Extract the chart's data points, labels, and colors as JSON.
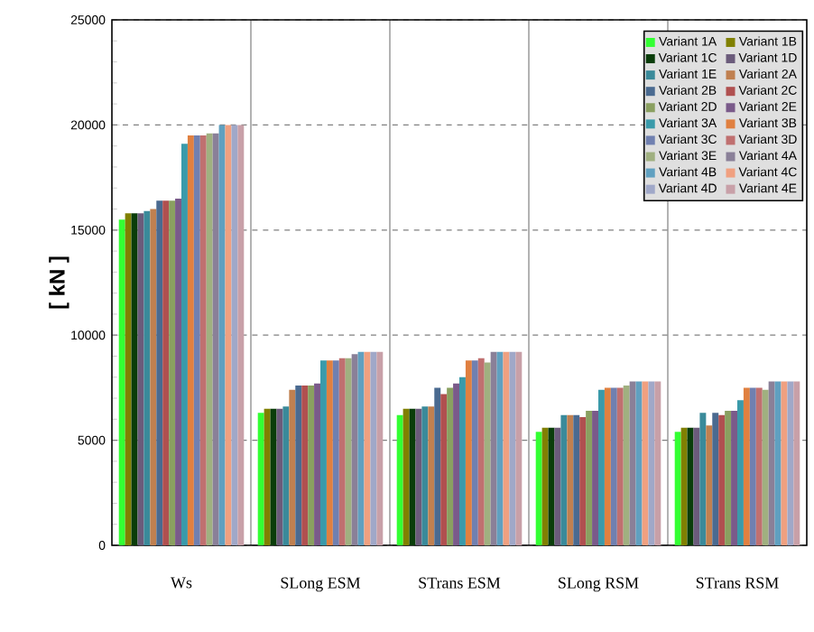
{
  "chart_data": {
    "type": "bar",
    "ylabel": "[ kN ]",
    "categories": [
      "Ws",
      "SLong ESM",
      "STrans ESM",
      "SLong RSM",
      "STrans RSM"
    ],
    "ylim": [
      0,
      25000
    ],
    "yticks": [
      0,
      5000,
      10000,
      15000,
      20000,
      25000
    ],
    "grid": true,
    "legend": "top right",
    "series": [
      {
        "name": "Variant 1A",
        "color": "#33ff33",
        "values": [
          15500,
          6300,
          6200,
          5400,
          5400
        ]
      },
      {
        "name": "Variant 1B",
        "color": "#808000",
        "values": [
          15800,
          6500,
          6500,
          5600,
          5600
        ]
      },
      {
        "name": "Variant 1C",
        "color": "#0a3d0a",
        "values": [
          15800,
          6500,
          6500,
          5600,
          5600
        ]
      },
      {
        "name": "Variant 1D",
        "color": "#6b5b7b",
        "values": [
          15800,
          6500,
          6500,
          5600,
          5600
        ]
      },
      {
        "name": "Variant 1E",
        "color": "#3a8a9a",
        "values": [
          15900,
          6600,
          6600,
          6200,
          6300
        ]
      },
      {
        "name": "Variant 2A",
        "color": "#c08050",
        "values": [
          16000,
          7400,
          6600,
          6200,
          5700
        ]
      },
      {
        "name": "Variant 2B",
        "color": "#4a6a90",
        "values": [
          16400,
          7600,
          7500,
          6200,
          6300
        ]
      },
      {
        "name": "Variant 2C",
        "color": "#b05050",
        "values": [
          16400,
          7600,
          7200,
          6100,
          6200
        ]
      },
      {
        "name": "Variant 2D",
        "color": "#8aa060",
        "values": [
          16400,
          7600,
          7500,
          6400,
          6400
        ]
      },
      {
        "name": "Variant 2E",
        "color": "#7a5a8a",
        "values": [
          16500,
          7700,
          7700,
          6400,
          6400
        ]
      },
      {
        "name": "Variant 3A",
        "color": "#3a9aaa",
        "values": [
          19100,
          8800,
          8000,
          7400,
          6900
        ]
      },
      {
        "name": "Variant 3B",
        "color": "#e08040",
        "values": [
          19500,
          8800,
          8800,
          7500,
          7500
        ]
      },
      {
        "name": "Variant 3C",
        "color": "#7080b0",
        "values": [
          19500,
          8800,
          8800,
          7500,
          7500
        ]
      },
      {
        "name": "Variant 3D",
        "color": "#c07070",
        "values": [
          19500,
          8900,
          8900,
          7500,
          7500
        ]
      },
      {
        "name": "Variant 3E",
        "color": "#a0b080",
        "values": [
          19600,
          8900,
          8700,
          7600,
          7400
        ]
      },
      {
        "name": "Variant 4A",
        "color": "#8a8098",
        "values": [
          19600,
          9100,
          9200,
          7800,
          7800
        ]
      },
      {
        "name": "Variant 4B",
        "color": "#60a0c0",
        "values": [
          20000,
          9200,
          9200,
          7800,
          7800
        ]
      },
      {
        "name": "Variant 4C",
        "color": "#f0a080",
        "values": [
          20000,
          9200,
          9200,
          7800,
          7800
        ]
      },
      {
        "name": "Variant 4D",
        "color": "#a0a8c8",
        "values": [
          20000,
          9200,
          9200,
          7800,
          7800
        ]
      },
      {
        "name": "Variant 4E",
        "color": "#c8a0a8",
        "values": [
          20000,
          9200,
          9200,
          7800,
          7800
        ]
      }
    ]
  }
}
